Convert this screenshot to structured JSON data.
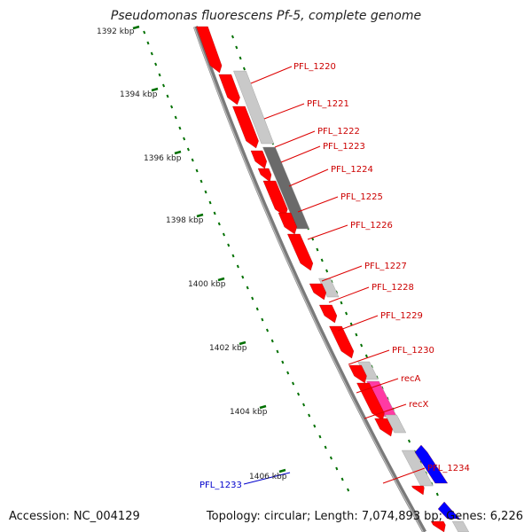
{
  "title": "Pseudomonas fluorescens Pf-5, complete genome",
  "footer": {
    "accession": "Accession: NC_004129",
    "summary": "Topology: circular; Length: 7,074,893 bp; Genes: 6,226"
  },
  "colors": {
    "backbone": "#888888",
    "gene_forward": "#ff0000",
    "gene_reverse": "#0000ff",
    "gene_pink": "#ff3aa3",
    "feature_light": "#c8c8c8",
    "feature_dark": "#666666",
    "ticks": "#007000",
    "label_red": "#cc0000",
    "label_blue": "#0000cc"
  },
  "scale_labels": [
    "1392 kbp",
    "1394 kbp",
    "1396 kbp",
    "1398 kbp",
    "1400 kbp",
    "1402 kbp",
    "1404 kbp",
    "1406 kbp"
  ],
  "gene_labels": [
    {
      "text": "PFL_1220",
      "color": "red"
    },
    {
      "text": "PFL_1221",
      "color": "red"
    },
    {
      "text": "PFL_1222",
      "color": "red"
    },
    {
      "text": "PFL_1223",
      "color": "red"
    },
    {
      "text": "PFL_1224",
      "color": "red"
    },
    {
      "text": "PFL_1225",
      "color": "red"
    },
    {
      "text": "PFL_1226",
      "color": "red"
    },
    {
      "text": "PFL_1227",
      "color": "red"
    },
    {
      "text": "PFL_1228",
      "color": "red"
    },
    {
      "text": "PFL_1229",
      "color": "red"
    },
    {
      "text": "PFL_1230",
      "color": "red"
    },
    {
      "text": "recA",
      "color": "red"
    },
    {
      "text": "recX",
      "color": "red"
    },
    {
      "text": "PFL_1234",
      "color": "red"
    },
    {
      "text": "PFL_1233",
      "color": "blue"
    }
  ]
}
